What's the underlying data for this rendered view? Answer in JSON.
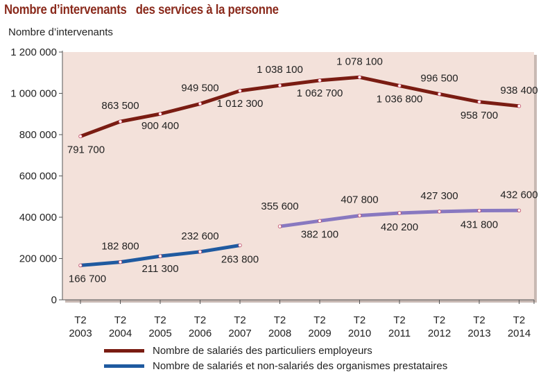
{
  "title": "Nombre d’intervenants   des services à la personne",
  "chart_data": {
    "type": "line",
    "ylabel": "Nombre d’intervenants",
    "ylim": [
      0,
      1200000
    ],
    "yticks": [
      "0",
      "200 000",
      "400 000",
      "600 000",
      "800 000",
      "1 000 000",
      "1 200 000"
    ],
    "categories": [
      [
        "T2",
        "2003"
      ],
      [
        "T2",
        "2004"
      ],
      [
        "T2",
        "2005"
      ],
      [
        "T2",
        "2006"
      ],
      [
        "T2",
        "2007"
      ],
      [
        "T2",
        "2008"
      ],
      [
        "T2",
        "2009"
      ],
      [
        "T2",
        "2010"
      ],
      [
        "T2",
        "2011"
      ],
      [
        "T2",
        "2012"
      ],
      [
        "T2",
        "2013"
      ],
      [
        "T2",
        "2014"
      ]
    ],
    "series": [
      {
        "name": "Nombre de salariés des particuliers employeurs",
        "color": "#7a1c12",
        "values": [
          791700,
          863500,
          900400,
          949500,
          1012300,
          1038100,
          1062700,
          1078100,
          1036800,
          996500,
          958700,
          938400
        ],
        "labels": [
          "791 700",
          "863 500",
          "900 400",
          "949 500",
          "1 012 300",
          "1 038 100",
          "1 062 700",
          "1 078 100",
          "1 036 800",
          "996 500",
          "958 700",
          "938 400"
        ]
      },
      {
        "name": "Nombre de salariés et non-salariés des organismes prestataires",
        "color": "#1f5aa0",
        "color_after_break": "#8878c0",
        "break_after_index": 4,
        "values": [
          166700,
          182800,
          211300,
          232600,
          263800,
          355600,
          382100,
          407800,
          420200,
          427300,
          431800,
          432600
        ],
        "labels": [
          "166 700",
          "182 800",
          "211 300",
          "232 600",
          "263 800",
          "355 600",
          "382 100",
          "407 800",
          "420 200",
          "427 300",
          "431 800",
          "432 600"
        ]
      }
    ],
    "grid": false,
    "background": "#f3e1da",
    "legend_position": "bottom-left"
  }
}
